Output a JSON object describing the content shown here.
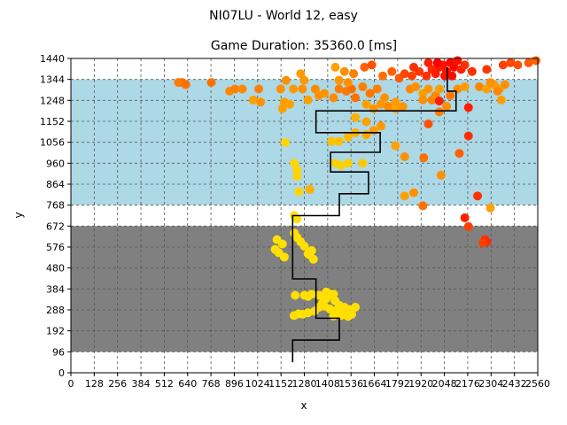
{
  "chart_data": {
    "type": "scatter",
    "suptitle": "NI07LU - World 12, easy",
    "title": "Game Duration: 35360.0 [ms]",
    "xlabel": "x",
    "ylabel": "y",
    "xlim": [
      0,
      2560
    ],
    "ylim": [
      0,
      1440
    ],
    "xticks": [
      0,
      128,
      256,
      384,
      512,
      640,
      768,
      896,
      1024,
      1152,
      1280,
      1408,
      1536,
      1664,
      1792,
      1920,
      2048,
      2176,
      2304,
      2432,
      2560
    ],
    "yticks": [
      0,
      96,
      192,
      288,
      384,
      480,
      576,
      672,
      768,
      864,
      960,
      1056,
      1152,
      1248,
      1344,
      1440
    ],
    "grid": true,
    "regions": [
      {
        "name": "dark-zone",
        "y0": 96,
        "y1": 672,
        "color": "#808080"
      },
      {
        "name": "light-zone",
        "y0": 768,
        "y1": 1344,
        "color": "#add8e6"
      }
    ],
    "path": {
      "color": "#000000",
      "points": [
        [
          1216,
          48
        ],
        [
          1216,
          150
        ],
        [
          1472,
          150
        ],
        [
          1472,
          250
        ],
        [
          1344,
          250
        ],
        [
          1344,
          430
        ],
        [
          1216,
          430
        ],
        [
          1216,
          720
        ],
        [
          1472,
          720
        ],
        [
          1472,
          820
        ],
        [
          1632,
          820
        ],
        [
          1632,
          920
        ],
        [
          1424,
          920
        ],
        [
          1424,
          1010
        ],
        [
          1696,
          1010
        ],
        [
          1696,
          1100
        ],
        [
          1344,
          1100
        ],
        [
          1344,
          1200
        ],
        [
          2112,
          1200
        ],
        [
          2112,
          1290
        ],
        [
          2064,
          1290
        ],
        [
          2064,
          1400
        ]
      ]
    },
    "points": [
      {
        "x": 1224,
        "y": 262,
        "c": "#ffe000"
      },
      {
        "x": 1248,
        "y": 270,
        "c": "#ffe000"
      },
      {
        "x": 1270,
        "y": 268,
        "c": "#ffe000"
      },
      {
        "x": 1300,
        "y": 275,
        "c": "#ffe000"
      },
      {
        "x": 1336,
        "y": 282,
        "c": "#ffe000"
      },
      {
        "x": 1360,
        "y": 300,
        "c": "#ffe000"
      },
      {
        "x": 1380,
        "y": 320,
        "c": "#ffe000"
      },
      {
        "x": 1400,
        "y": 340,
        "c": "#ffe000"
      },
      {
        "x": 1420,
        "y": 360,
        "c": "#ffe000"
      },
      {
        "x": 1448,
        "y": 330,
        "c": "#ffe000"
      },
      {
        "x": 1470,
        "y": 310,
        "c": "#ffe000"
      },
      {
        "x": 1500,
        "y": 300,
        "c": "#ffe000"
      },
      {
        "x": 1530,
        "y": 290,
        "c": "#ffe000"
      },
      {
        "x": 1560,
        "y": 300,
        "c": "#ffe000"
      },
      {
        "x": 1540,
        "y": 268,
        "c": "#ffe000"
      },
      {
        "x": 1500,
        "y": 280,
        "c": "#ffe000"
      },
      {
        "x": 1460,
        "y": 288,
        "c": "#ffe000"
      },
      {
        "x": 1420,
        "y": 292,
        "c": "#ffe000"
      },
      {
        "x": 1390,
        "y": 305,
        "c": "#ffe000"
      },
      {
        "x": 1300,
        "y": 350,
        "c": "#ffe000"
      },
      {
        "x": 1280,
        "y": 355,
        "c": "#ffe000"
      },
      {
        "x": 1320,
        "y": 360,
        "c": "#ffe000"
      },
      {
        "x": 1360,
        "y": 355,
        "c": "#ffe000"
      },
      {
        "x": 1400,
        "y": 370,
        "c": "#ffe000"
      },
      {
        "x": 1440,
        "y": 360,
        "c": "#ffe000"
      },
      {
        "x": 1230,
        "y": 355,
        "c": "#ffe000"
      },
      {
        "x": 1440,
        "y": 260,
        "c": "#ffe000"
      },
      {
        "x": 1480,
        "y": 262,
        "c": "#ffe000"
      },
      {
        "x": 1520,
        "y": 258,
        "c": "#ffe000"
      },
      {
        "x": 1120,
        "y": 565,
        "c": "#ffe000"
      },
      {
        "x": 1140,
        "y": 550,
        "c": "#ffe000"
      },
      {
        "x": 1160,
        "y": 590,
        "c": "#ffe000"
      },
      {
        "x": 1130,
        "y": 610,
        "c": "#ffe000"
      },
      {
        "x": 1170,
        "y": 530,
        "c": "#ffe000"
      },
      {
        "x": 1225,
        "y": 640,
        "c": "#ffe000"
      },
      {
        "x": 1240,
        "y": 620,
        "c": "#ffe000"
      },
      {
        "x": 1260,
        "y": 600,
        "c": "#ffe000"
      },
      {
        "x": 1280,
        "y": 580,
        "c": "#ffe000"
      },
      {
        "x": 1300,
        "y": 545,
        "c": "#ffe000"
      },
      {
        "x": 1320,
        "y": 560,
        "c": "#ffe000"
      },
      {
        "x": 1330,
        "y": 520,
        "c": "#ffe000"
      },
      {
        "x": 1310,
        "y": 540,
        "c": "#ffe000"
      },
      {
        "x": 1225,
        "y": 720,
        "c": "#ffe000"
      },
      {
        "x": 1240,
        "y": 705,
        "c": "#ffe000"
      },
      {
        "x": 1225,
        "y": 960,
        "c": "#ffd400"
      },
      {
        "x": 1240,
        "y": 930,
        "c": "#ffd400"
      },
      {
        "x": 1240,
        "y": 900,
        "c": "#ffd400"
      },
      {
        "x": 1250,
        "y": 830,
        "c": "#ffd400"
      },
      {
        "x": 1175,
        "y": 1055,
        "c": "#ffd400"
      },
      {
        "x": 1310,
        "y": 840,
        "c": "#ffb000"
      },
      {
        "x": 1450,
        "y": 960,
        "c": "#ffd000"
      },
      {
        "x": 1480,
        "y": 950,
        "c": "#ffd000"
      },
      {
        "x": 1520,
        "y": 960,
        "c": "#ffd000"
      },
      {
        "x": 1600,
        "y": 960,
        "c": "#ffc800"
      },
      {
        "x": 1430,
        "y": 1060,
        "c": "#ffc000"
      },
      {
        "x": 1470,
        "y": 1060,
        "c": "#ffc000"
      },
      {
        "x": 1520,
        "y": 1080,
        "c": "#ffb800"
      },
      {
        "x": 1560,
        "y": 1100,
        "c": "#ffb000"
      },
      {
        "x": 1620,
        "y": 1090,
        "c": "#ffa800"
      },
      {
        "x": 1660,
        "y": 1110,
        "c": "#ff9c00"
      },
      {
        "x": 1560,
        "y": 1170,
        "c": "#ffb000"
      },
      {
        "x": 1620,
        "y": 1150,
        "c": "#ffa000"
      },
      {
        "x": 1700,
        "y": 1130,
        "c": "#ff9800"
      },
      {
        "x": 1780,
        "y": 1040,
        "c": "#ffa000"
      },
      {
        "x": 1830,
        "y": 990,
        "c": "#ff9000"
      },
      {
        "x": 1830,
        "y": 810,
        "c": "#ffa000"
      },
      {
        "x": 1880,
        "y": 825,
        "c": "#ff9000"
      },
      {
        "x": 1930,
        "y": 765,
        "c": "#ff7000"
      },
      {
        "x": 1935,
        "y": 985,
        "c": "#ff7000"
      },
      {
        "x": 2030,
        "y": 905,
        "c": "#ff9000"
      },
      {
        "x": 2130,
        "y": 1005,
        "c": "#ff6000"
      },
      {
        "x": 2180,
        "y": 1085,
        "c": "#ff3000"
      },
      {
        "x": 2230,
        "y": 810,
        "c": "#ff3000"
      },
      {
        "x": 2160,
        "y": 710,
        "c": "#ff2000"
      },
      {
        "x": 2180,
        "y": 670,
        "c": "#ff4000"
      },
      {
        "x": 2300,
        "y": 755,
        "c": "#ffa000"
      },
      {
        "x": 2270,
        "y": 610,
        "c": "#ff3000"
      },
      {
        "x": 2280,
        "y": 600,
        "c": "#ff2800"
      },
      {
        "x": 2260,
        "y": 595,
        "c": "#ff4000"
      },
      {
        "x": 1160,
        "y": 1210,
        "c": "#ffa000"
      },
      {
        "x": 1170,
        "y": 1240,
        "c": "#ff9c00"
      },
      {
        "x": 1200,
        "y": 1230,
        "c": "#ffa000"
      },
      {
        "x": 1220,
        "y": 1300,
        "c": "#ff9800"
      },
      {
        "x": 1150,
        "y": 1300,
        "c": "#ff9000"
      },
      {
        "x": 1270,
        "y": 1300,
        "c": "#ff9000"
      },
      {
        "x": 1260,
        "y": 1370,
        "c": "#ff9c00"
      },
      {
        "x": 1280,
        "y": 1340,
        "c": "#ff9800"
      },
      {
        "x": 1300,
        "y": 1250,
        "c": "#ffa000"
      },
      {
        "x": 1340,
        "y": 1300,
        "c": "#ff8c00"
      },
      {
        "x": 1360,
        "y": 1270,
        "c": "#ff9000"
      },
      {
        "x": 1390,
        "y": 1280,
        "c": "#ff9400"
      },
      {
        "x": 1440,
        "y": 1260,
        "c": "#ff8800"
      },
      {
        "x": 1470,
        "y": 1300,
        "c": "#ff8000"
      },
      {
        "x": 1510,
        "y": 1290,
        "c": "#ff7800"
      },
      {
        "x": 1540,
        "y": 1300,
        "c": "#ff7000"
      },
      {
        "x": 1560,
        "y": 1260,
        "c": "#ff7000"
      },
      {
        "x": 1520,
        "y": 1330,
        "c": "#ff9000"
      },
      {
        "x": 1470,
        "y": 1340,
        "c": "#ff9800"
      },
      {
        "x": 1600,
        "y": 1310,
        "c": "#ff8000"
      },
      {
        "x": 1640,
        "y": 1280,
        "c": "#ff7800"
      },
      {
        "x": 1680,
        "y": 1300,
        "c": "#ff8000"
      },
      {
        "x": 1720,
        "y": 1260,
        "c": "#ff9000"
      },
      {
        "x": 1700,
        "y": 1230,
        "c": "#ff9800"
      },
      {
        "x": 1620,
        "y": 1230,
        "c": "#ffa000"
      },
      {
        "x": 1660,
        "y": 1210,
        "c": "#ff9800"
      },
      {
        "x": 1740,
        "y": 1220,
        "c": "#ff8800"
      },
      {
        "x": 1780,
        "y": 1210,
        "c": "#ffa000"
      },
      {
        "x": 1780,
        "y": 1240,
        "c": "#ff9c00"
      },
      {
        "x": 1820,
        "y": 1220,
        "c": "#ff9400"
      },
      {
        "x": 1860,
        "y": 1300,
        "c": "#ff8800"
      },
      {
        "x": 1890,
        "y": 1310,
        "c": "#ff9000"
      },
      {
        "x": 1930,
        "y": 1280,
        "c": "#ffa000"
      },
      {
        "x": 1960,
        "y": 1300,
        "c": "#ff9800"
      },
      {
        "x": 1980,
        "y": 1250,
        "c": "#ff8000"
      },
      {
        "x": 2000,
        "y": 1270,
        "c": "#ff8800"
      },
      {
        "x": 2020,
        "y": 1300,
        "c": "#ff9c00"
      },
      {
        "x": 1930,
        "y": 1250,
        "c": "#ff9000"
      },
      {
        "x": 1960,
        "y": 1140,
        "c": "#ff5000"
      },
      {
        "x": 2020,
        "y": 1195,
        "c": "#ff8000"
      },
      {
        "x": 2060,
        "y": 1220,
        "c": "#ff9000"
      },
      {
        "x": 2080,
        "y": 1270,
        "c": "#ff7800"
      },
      {
        "x": 2120,
        "y": 1300,
        "c": "#ff9000"
      },
      {
        "x": 2160,
        "y": 1310,
        "c": "#ff9c00"
      },
      {
        "x": 2180,
        "y": 1215,
        "c": "#ff2000"
      },
      {
        "x": 2240,
        "y": 1310,
        "c": "#ff8800"
      },
      {
        "x": 2280,
        "y": 1300,
        "c": "#ffa000"
      },
      {
        "x": 2320,
        "y": 1320,
        "c": "#ff9c00"
      },
      {
        "x": 2350,
        "y": 1300,
        "c": "#ffa000"
      },
      {
        "x": 2380,
        "y": 1320,
        "c": "#ff9000"
      },
      {
        "x": 2340,
        "y": 1290,
        "c": "#ff8800"
      },
      {
        "x": 2360,
        "y": 1250,
        "c": "#ffa000"
      },
      {
        "x": 2300,
        "y": 1330,
        "c": "#ff9000"
      },
      {
        "x": 2020,
        "y": 1245,
        "c": "#ff2000"
      },
      {
        "x": 1180,
        "y": 1340,
        "c": "#ff9000"
      },
      {
        "x": 870,
        "y": 1290,
        "c": "#ff8800"
      },
      {
        "x": 900,
        "y": 1300,
        "c": "#ff8000"
      },
      {
        "x": 940,
        "y": 1300,
        "c": "#ff8800"
      },
      {
        "x": 1030,
        "y": 1300,
        "c": "#ff8000"
      },
      {
        "x": 1000,
        "y": 1250,
        "c": "#ffa000"
      },
      {
        "x": 1040,
        "y": 1240,
        "c": "#ff9000"
      },
      {
        "x": 770,
        "y": 1330,
        "c": "#ff7000"
      },
      {
        "x": 610,
        "y": 1330,
        "c": "#ff6800"
      },
      {
        "x": 630,
        "y": 1320,
        "c": "#ff7000"
      },
      {
        "x": 590,
        "y": 1330,
        "c": "#ff7800"
      },
      {
        "x": 1450,
        "y": 1400,
        "c": "#ffa000"
      },
      {
        "x": 1500,
        "y": 1380,
        "c": "#ff9000"
      },
      {
        "x": 1550,
        "y": 1370,
        "c": "#ff8000"
      },
      {
        "x": 1610,
        "y": 1400,
        "c": "#ff6000"
      },
      {
        "x": 1650,
        "y": 1410,
        "c": "#ff5000"
      },
      {
        "x": 1710,
        "y": 1360,
        "c": "#ff7000"
      },
      {
        "x": 1760,
        "y": 1380,
        "c": "#ff6000"
      },
      {
        "x": 1800,
        "y": 1350,
        "c": "#ff5800"
      },
      {
        "x": 1830,
        "y": 1370,
        "c": "#ff4800"
      },
      {
        "x": 1870,
        "y": 1360,
        "c": "#ff4000"
      },
      {
        "x": 1910,
        "y": 1380,
        "c": "#ff3800"
      },
      {
        "x": 1950,
        "y": 1360,
        "c": "#ff3000"
      },
      {
        "x": 1980,
        "y": 1390,
        "c": "#ff2800"
      },
      {
        "x": 2000,
        "y": 1370,
        "c": "#ff2000"
      },
      {
        "x": 2020,
        "y": 1400,
        "c": "#ff1800"
      },
      {
        "x": 2040,
        "y": 1410,
        "c": "#ff1400"
      },
      {
        "x": 2060,
        "y": 1380,
        "c": "#ff1000"
      },
      {
        "x": 2080,
        "y": 1420,
        "c": "#ff0800"
      },
      {
        "x": 2100,
        "y": 1400,
        "c": "#ff0400"
      },
      {
        "x": 2120,
        "y": 1430,
        "c": "#ff1000"
      },
      {
        "x": 2140,
        "y": 1390,
        "c": "#ff2000"
      },
      {
        "x": 2160,
        "y": 1410,
        "c": "#ff3000"
      },
      {
        "x": 2200,
        "y": 1380,
        "c": "#ff3000"
      },
      {
        "x": 2280,
        "y": 1390,
        "c": "#ff3800"
      },
      {
        "x": 2370,
        "y": 1410,
        "c": "#ff4000"
      },
      {
        "x": 2410,
        "y": 1420,
        "c": "#ff4800"
      },
      {
        "x": 2450,
        "y": 1410,
        "c": "#ff5000"
      },
      {
        "x": 2510,
        "y": 1420,
        "c": "#ff5800"
      },
      {
        "x": 2550,
        "y": 1430,
        "c": "#ff6000"
      },
      {
        "x": 2010,
        "y": 1420,
        "c": "#ff0000"
      },
      {
        "x": 2050,
        "y": 1360,
        "c": "#ff1000"
      },
      {
        "x": 2090,
        "y": 1360,
        "c": "#ff0800"
      },
      {
        "x": 1960,
        "y": 1420,
        "c": "#ff2000"
      },
      {
        "x": 1880,
        "y": 1400,
        "c": "#ff3000"
      }
    ]
  }
}
